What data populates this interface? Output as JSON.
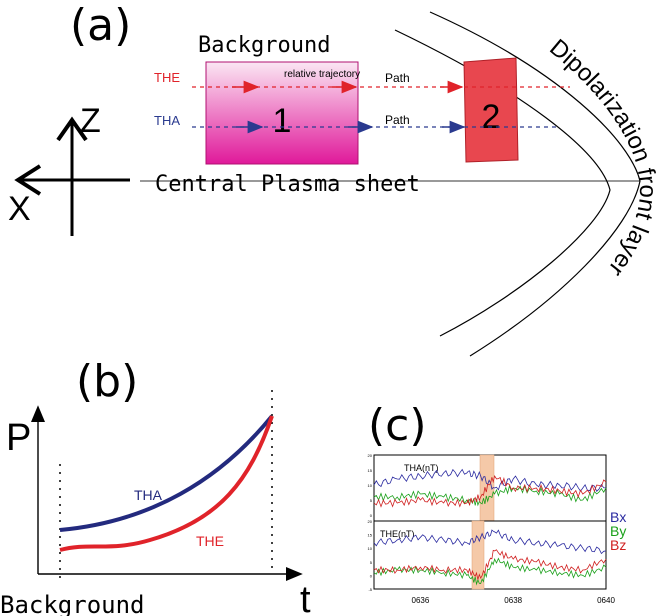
{
  "panel_a": {
    "label": "(a)",
    "background_label": "Background",
    "relative_trajectory": "relative trajectory",
    "the_label": "THE",
    "tha_label": "THA",
    "path_label_1": "Path",
    "path_label_2": "Path",
    "box1_label": "1",
    "box2_label": "2",
    "plasma_sheet_label": "Central Plasma sheet",
    "front_layer_label": "Dipolarization front layer",
    "axis_z": "Z",
    "axis_x": "X",
    "colors": {
      "the": "#e0232a",
      "tha": "#2a3a8f",
      "box1_top": "#ffffff",
      "box1_bottom": "#e0199a",
      "box2": "#e8474f"
    }
  },
  "panel_b": {
    "label": "(b)",
    "y_axis": "P",
    "x_axis": "t",
    "background_label": "Background",
    "tha_label": "THA",
    "the_label": "THE",
    "colors": {
      "tha": "#232a7e",
      "the": "#e0232a"
    }
  },
  "panel_c": {
    "label": "(c)",
    "top_title": "THA(nT)",
    "bottom_title": "THE(nT)",
    "legend": [
      "Bx",
      "By",
      "Bz"
    ],
    "legend_colors": [
      "#2a2aa0",
      "#1aa01a",
      "#d02020"
    ],
    "x_ticks": [
      "0636",
      "0638",
      "0640"
    ],
    "x_tick_values": [
      636,
      638,
      640
    ],
    "y_ticks_top": [
      "20",
      "15",
      "10",
      "5",
      "0"
    ],
    "y_ticks_bottom": [
      "20",
      "15",
      "10",
      "5",
      "0",
      "-5"
    ]
  },
  "chart_data": [
    {
      "type": "line",
      "panel": "top",
      "title": "THA(nT)",
      "x": [
        635.0,
        635.5,
        636.0,
        636.5,
        637.0,
        637.3,
        637.6,
        638.0,
        638.5,
        639.0,
        639.5,
        640.0
      ],
      "series": [
        {
          "name": "Bx",
          "values": [
            10,
            12,
            13,
            14,
            14,
            13,
            9,
            12,
            10,
            10,
            9,
            9
          ]
        },
        {
          "name": "By",
          "values": [
            6,
            6,
            7,
            6,
            5,
            4,
            7,
            9,
            8,
            7,
            5,
            9
          ]
        },
        {
          "name": "Bz",
          "values": [
            4,
            4,
            5,
            4,
            4,
            6,
            13,
            9,
            9,
            8,
            7,
            11
          ]
        }
      ],
      "ylim": [
        -2,
        20
      ]
    },
    {
      "type": "line",
      "panel": "bottom",
      "title": "THE(nT)",
      "x": [
        635.0,
        635.5,
        636.0,
        636.5,
        637.0,
        637.3,
        637.6,
        638.0,
        638.5,
        639.0,
        639.5,
        640.0
      ],
      "series": [
        {
          "name": "Bx",
          "values": [
            12,
            13,
            14,
            13,
            12,
            14,
            16,
            13,
            12,
            11,
            10,
            9
          ]
        },
        {
          "name": "By",
          "values": [
            1,
            2,
            2,
            1,
            0,
            -3,
            6,
            3,
            2,
            1,
            0,
            3
          ]
        },
        {
          "name": "Bz",
          "values": [
            2,
            2,
            3,
            2,
            2,
            -1,
            9,
            6,
            5,
            3,
            2,
            6
          ]
        }
      ],
      "ylim": [
        -5,
        20
      ]
    },
    {
      "type": "line",
      "panel": "b",
      "series": [
        {
          "name": "THA",
          "values": [
            0.15,
            0.28,
            0.52,
            1.0
          ]
        },
        {
          "name": "THE",
          "values": [
            0.08,
            0.14,
            0.38,
            1.0
          ]
        }
      ],
      "x": [
        0,
        0.33,
        0.66,
        1.0
      ]
    }
  ]
}
